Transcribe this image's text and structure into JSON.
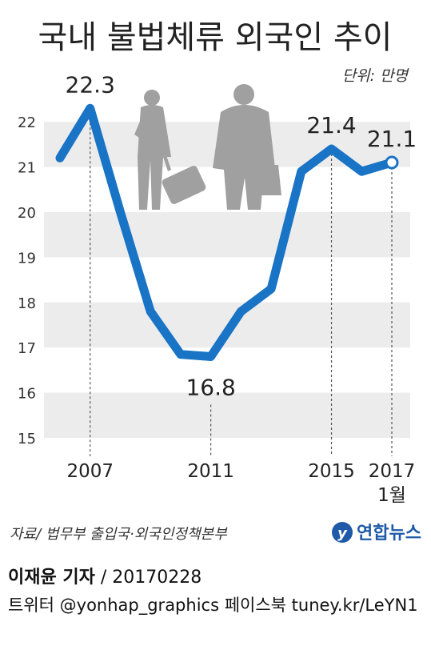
{
  "title": "국내 불법체류 외국인 추이",
  "unit": "단위: 만명",
  "source": "자료/ 법무부 출입국·외국인정책본부",
  "logo": "연합뉴스",
  "footer": {
    "author": "이재윤 기자",
    "separator": " / ",
    "date": "20170228",
    "social": "트위터 @yonhap_graphics  페이스북 tuney.kr/LeYN1"
  },
  "colors": {
    "line": "#1a74c6",
    "band": "#ececec",
    "silhouette": "#a0a0a0"
  },
  "chart_data": {
    "type": "line",
    "title": "국내 불법체류 외국인 추이",
    "ylabel": "단위: 만명",
    "ylim": [
      15,
      22.5
    ],
    "yticks": [
      15,
      16,
      17,
      18,
      19,
      20,
      21,
      22
    ],
    "grid": "alternating horizontal bands",
    "x": [
      2006,
      2007,
      2008,
      2009,
      2010,
      2011,
      2012,
      2013,
      2014,
      2015,
      2016,
      2017
    ],
    "values": [
      21.2,
      22.3,
      20.0,
      17.8,
      16.85,
      16.8,
      17.8,
      18.3,
      20.9,
      21.4,
      20.9,
      21.1
    ],
    "xticks": [
      {
        "x": 2007,
        "label": "2007"
      },
      {
        "x": 2011,
        "label": "2011"
      },
      {
        "x": 2015,
        "label": "2015"
      },
      {
        "x": 2017,
        "label": "2017"
      }
    ],
    "xtick_sub": "1월",
    "data_labels": [
      {
        "x": 2007,
        "label": "22.3"
      },
      {
        "x": 2011,
        "label": "16.8"
      },
      {
        "x": 2015,
        "label": "21.4"
      },
      {
        "x": 2017,
        "label": "21.1"
      }
    ]
  }
}
